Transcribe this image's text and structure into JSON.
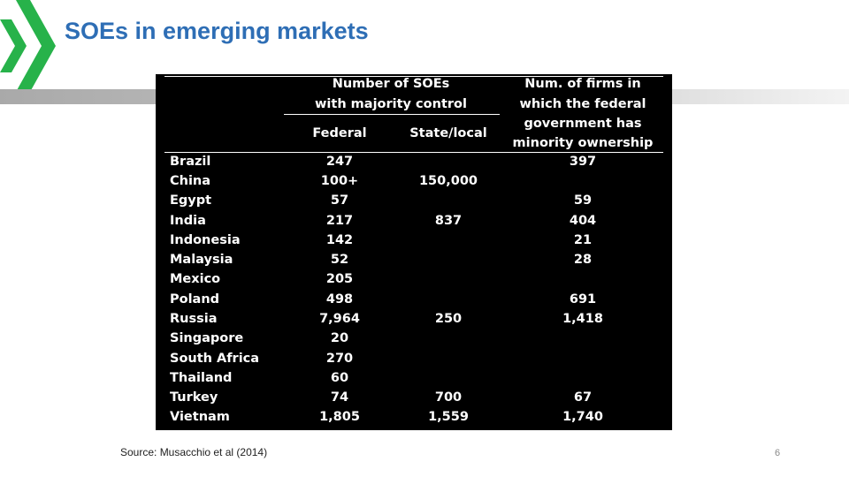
{
  "slide": {
    "title": "SOEs in emerging markets",
    "source": "Source: Musacchio et al (2014)",
    "page_number": "6"
  },
  "table": {
    "group_header_soes": [
      "Number of SOEs",
      "with majority control"
    ],
    "col_federal": "Federal",
    "col_state_local": "State/local",
    "col_minority": [
      "Num. of firms in",
      "which the federal",
      "government has",
      "minority ownership"
    ],
    "rows": [
      {
        "country": "Brazil",
        "federal": "247",
        "state_local": "",
        "minority": "397"
      },
      {
        "country": "China",
        "federal": "100+",
        "state_local": "150,000",
        "minority": ""
      },
      {
        "country": "Egypt",
        "federal": "57",
        "state_local": "",
        "minority": "59"
      },
      {
        "country": "India",
        "federal": "217",
        "state_local": "837",
        "minority": "404"
      },
      {
        "country": "Indonesia",
        "federal": "142",
        "state_local": "",
        "minority": "21"
      },
      {
        "country": "Malaysia",
        "federal": "52",
        "state_local": "",
        "minority": "28"
      },
      {
        "country": "Mexico",
        "federal": "205",
        "state_local": "",
        "minority": ""
      },
      {
        "country": "Poland",
        "federal": "498",
        "state_local": "",
        "minority": "691"
      },
      {
        "country": "Russia",
        "federal": "7,964",
        "state_local": "250",
        "minority": "1,418"
      },
      {
        "country": "Singapore",
        "federal": "20",
        "state_local": "",
        "minority": ""
      },
      {
        "country": "South Africa",
        "federal": "270",
        "state_local": "",
        "minority": ""
      },
      {
        "country": "Thailand",
        "federal": "60",
        "state_local": "",
        "minority": ""
      },
      {
        "country": "Turkey",
        "federal": "74",
        "state_local": "700",
        "minority": "67"
      },
      {
        "country": "Vietnam",
        "federal": "1,805",
        "state_local": "1,559",
        "minority": "1,740"
      }
    ]
  },
  "colors": {
    "accent_green": "#27b24a",
    "title_blue": "#2e6eb5"
  }
}
